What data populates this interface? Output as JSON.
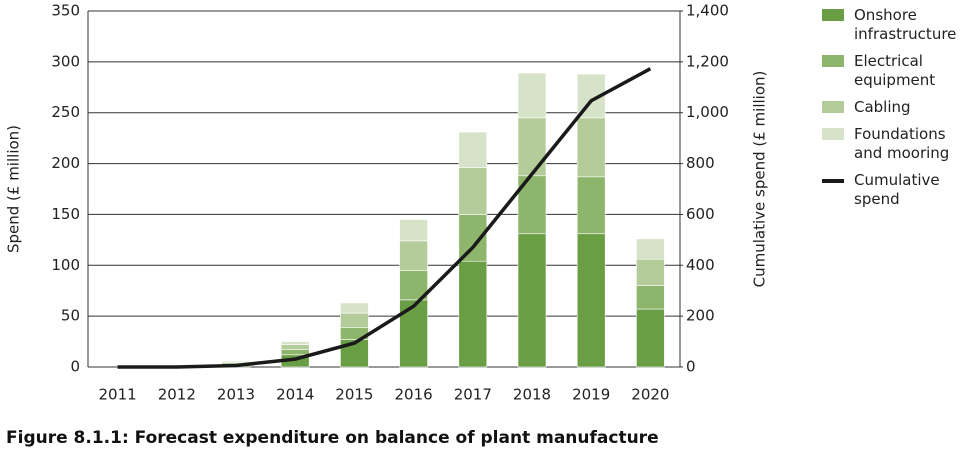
{
  "chart_data": {
    "type": "bar",
    "caption": "Figure 8.1.1: Forecast expenditure on balance of plant manufacture",
    "ylabel": "Spend (£ million)",
    "y2label": "Cumulative spend (£ million)",
    "categories": [
      "2011",
      "2012",
      "2013",
      "2014",
      "2015",
      "2016",
      "2017",
      "2018",
      "2019",
      "2020"
    ],
    "series": [
      {
        "name": "Onshore infrastructure",
        "color": "#6a9e45",
        "values": [
          0,
          0,
          2,
          12,
          27,
          66,
          104,
          131,
          131,
          57
        ]
      },
      {
        "name": "Electrical equipment",
        "color": "#8db56b",
        "values": [
          0,
          0,
          2,
          5,
          12,
          29,
          46,
          57,
          56,
          23
        ]
      },
      {
        "name": "Cabling",
        "color": "#b4cc99",
        "values": [
          0,
          0,
          1,
          5,
          14,
          29,
          46,
          57,
          58,
          26
        ]
      },
      {
        "name": "Foundations and mooring",
        "color": "#d7e3c8",
        "values": [
          0,
          0,
          1,
          3,
          10,
          21,
          35,
          44,
          43,
          20
        ]
      },
      {
        "name": "Cumulative spend",
        "color": "#1a1a1a",
        "type": "line",
        "axis": "y2",
        "values": [
          0,
          0,
          6,
          31,
          94,
          239,
          470,
          759,
          1047,
          1173
        ]
      }
    ],
    "ylim": [
      0,
      350
    ],
    "yticks": [
      0,
      50,
      100,
      150,
      200,
      250,
      300,
      350
    ],
    "y2lim": [
      0,
      1400
    ],
    "y2ticks": [
      0,
      200,
      400,
      600,
      800,
      {
        "value": 1000,
        "label": "1,000"
      },
      {
        "value": 1200,
        "label": "1,200"
      },
      {
        "value": 1400,
        "label": "1,400"
      }
    ],
    "grid": true,
    "stacked": true,
    "legend": "right"
  }
}
